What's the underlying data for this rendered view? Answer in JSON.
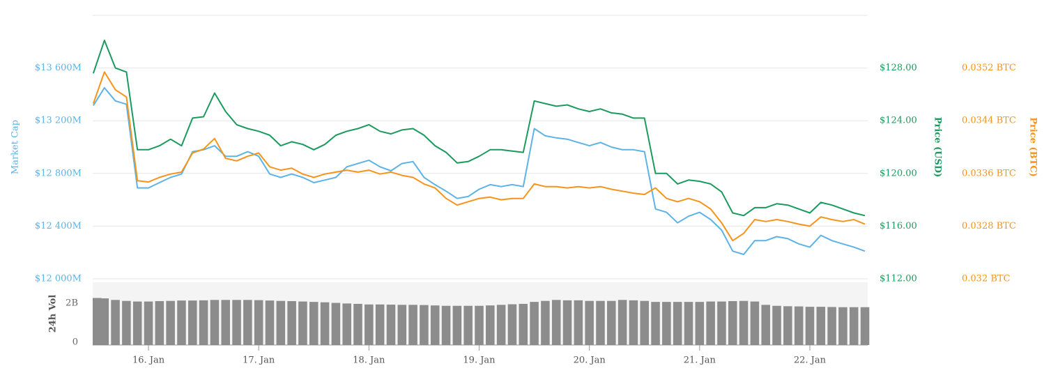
{
  "chart_data": [
    {
      "type": "line",
      "ylabel": "Market Cap",
      "y2label": "Price (USD)",
      "y3label": "Price (BTC)",
      "x": [
        15.5,
        15.6,
        15.7,
        15.8,
        15.9,
        16.0,
        16.1,
        16.2,
        16.3,
        16.4,
        16.5,
        16.6,
        16.7,
        16.8,
        16.9,
        17.0,
        17.1,
        17.2,
        17.3,
        17.4,
        17.5,
        17.6,
        17.7,
        17.8,
        17.9,
        18.0,
        18.1,
        18.2,
        18.3,
        18.4,
        18.5,
        18.6,
        18.7,
        18.8,
        18.9,
        19.0,
        19.1,
        19.2,
        19.3,
        19.4,
        19.5,
        19.6,
        19.7,
        19.8,
        19.9,
        20.0,
        20.1,
        20.2,
        20.3,
        20.4,
        20.5,
        20.6,
        20.7,
        20.8,
        20.9,
        21.0,
        21.1,
        21.2,
        21.3,
        21.4,
        21.5,
        21.6,
        21.7,
        21.8,
        21.9,
        22.0,
        22.1,
        22.2,
        22.3,
        22.4,
        22.5
      ],
      "xlim": [
        15.494,
        22.525
      ],
      "xticks": [
        {
          "value": 16,
          "label": "16. Jan"
        },
        {
          "value": 17,
          "label": "17. Jan"
        },
        {
          "value": 18,
          "label": "18. Jan"
        },
        {
          "value": 19,
          "label": "19. Jan"
        },
        {
          "value": 20,
          "label": "20. Jan"
        },
        {
          "value": 21,
          "label": "21. Jan"
        },
        {
          "value": 22,
          "label": "22. Jan"
        }
      ],
      "ylim": [
        12000,
        14000
      ],
      "yticks": [
        {
          "value": 12000,
          "label": "$12 000M"
        },
        {
          "value": 12400,
          "label": "$12 400M"
        },
        {
          "value": 12800,
          "label": "$12 800M"
        },
        {
          "value": 13200,
          "label": "$13 200M"
        },
        {
          "value": 13600,
          "label": "$13 600M"
        }
      ],
      "y2lim": [
        112,
        132
      ],
      "y2ticks": [
        {
          "value": 112,
          "label": "$112.00"
        },
        {
          "value": 116,
          "label": "$116.00"
        },
        {
          "value": 120,
          "label": "$120.00"
        },
        {
          "value": 124,
          "label": "$124.00"
        },
        {
          "value": 128,
          "label": "$128.00"
        }
      ],
      "y3lim": [
        0.032,
        0.036
      ],
      "y3ticks": [
        {
          "value": 0.032,
          "label": "0.032 BTC"
        },
        {
          "value": 0.0328,
          "label": "0.0328 BTC"
        },
        {
          "value": 0.0336,
          "label": "0.0336 BTC"
        },
        {
          "value": 0.0344,
          "label": "0.0344 BTC"
        },
        {
          "value": 0.0352,
          "label": "0.0352 BTC"
        }
      ],
      "grid": true,
      "series": [
        {
          "name": "Market Cap",
          "axis": "y",
          "color": "#5bb3e6",
          "values": [
            13315,
            13450,
            13350,
            13325,
            12690,
            12690,
            12730,
            12770,
            12795,
            12965,
            12980,
            13010,
            12930,
            12930,
            12965,
            12930,
            12795,
            12770,
            12795,
            12770,
            12730,
            12750,
            12770,
            12850,
            12875,
            12900,
            12850,
            12820,
            12875,
            12890,
            12770,
            12715,
            12665,
            12610,
            12625,
            12680,
            12715,
            12700,
            12715,
            12700,
            13140,
            13085,
            13070,
            13060,
            13035,
            13010,
            13035,
            13000,
            12980,
            12980,
            12965,
            12530,
            12505,
            12425,
            12475,
            12505,
            12450,
            12370,
            12210,
            12185,
            12290,
            12290,
            12320,
            12305,
            12265,
            12240,
            12330,
            12290,
            12265,
            12240,
            12210
          ]
        },
        {
          "name": "Price (USD)",
          "axis": "y2",
          "color": "#1a9a5c",
          "values": [
            127.6,
            130.1,
            128.0,
            127.7,
            121.8,
            121.8,
            122.1,
            122.6,
            122.1,
            124.2,
            124.3,
            126.1,
            124.7,
            123.7,
            123.4,
            123.2,
            122.9,
            122.1,
            122.4,
            122.2,
            121.8,
            122.2,
            122.9,
            123.2,
            123.4,
            123.7,
            123.2,
            123.0,
            123.3,
            123.4,
            122.9,
            122.1,
            121.6,
            120.8,
            120.9,
            121.3,
            121.8,
            121.8,
            121.7,
            121.6,
            125.5,
            125.3,
            125.1,
            125.2,
            124.9,
            124.7,
            124.9,
            124.6,
            124.5,
            124.2,
            124.2,
            120.0,
            120.0,
            119.2,
            119.5,
            119.4,
            119.2,
            118.6,
            117.0,
            116.8,
            117.4,
            117.4,
            117.7,
            117.6,
            117.3,
            117.0,
            117.8,
            117.6,
            117.3,
            117.0,
            116.8
          ]
        },
        {
          "name": "Price (BTC)",
          "axis": "y3",
          "color": "#f7931a",
          "values": [
            0.03466,
            0.03514,
            0.03487,
            0.03476,
            0.03349,
            0.03347,
            0.03354,
            0.03359,
            0.03362,
            0.03391,
            0.03397,
            0.03413,
            0.03383,
            0.03379,
            0.03386,
            0.03391,
            0.0337,
            0.03365,
            0.03368,
            0.03359,
            0.03354,
            0.03359,
            0.03362,
            0.03365,
            0.03362,
            0.03365,
            0.03359,
            0.03362,
            0.03357,
            0.03354,
            0.03344,
            0.03338,
            0.03322,
            0.03312,
            0.03317,
            0.03322,
            0.03324,
            0.0332,
            0.03322,
            0.03322,
            0.03344,
            0.0334,
            0.0334,
            0.03338,
            0.0334,
            0.03338,
            0.0334,
            0.03336,
            0.03333,
            0.0333,
            0.03328,
            0.03338,
            0.03322,
            0.03317,
            0.03322,
            0.03317,
            0.03306,
            0.03285,
            0.03258,
            0.03269,
            0.0329,
            0.03287,
            0.0329,
            0.03287,
            0.03283,
            0.0328,
            0.03294,
            0.0329,
            0.03287,
            0.0329,
            0.03283
          ]
        }
      ]
    },
    {
      "type": "bar",
      "ylabel": "24h Vol",
      "x": [
        15.5,
        15.6,
        15.7,
        15.8,
        15.9,
        16.0,
        16.1,
        16.2,
        16.3,
        16.4,
        16.5,
        16.6,
        16.7,
        16.8,
        16.9,
        17.0,
        17.1,
        17.2,
        17.3,
        17.4,
        17.5,
        17.6,
        17.7,
        17.8,
        17.9,
        18.0,
        18.1,
        18.2,
        18.3,
        18.4,
        18.5,
        18.6,
        18.7,
        18.8,
        18.9,
        19.0,
        19.1,
        19.2,
        19.3,
        19.4,
        19.5,
        19.6,
        19.7,
        19.8,
        19.9,
        20.0,
        20.1,
        20.2,
        20.3,
        20.4,
        20.5,
        20.6,
        20.7,
        20.8,
        20.9,
        21.0,
        21.1,
        21.2,
        21.3,
        21.4,
        21.5,
        21.6,
        21.7,
        21.8,
        21.9,
        22.0,
        22.1,
        22.2,
        22.3,
        22.4,
        22.5
      ],
      "xlim": [
        15.494,
        22.525
      ],
      "ylim": [
        0,
        3.2
      ],
      "yticks": [
        0,
        {
          "value": 2,
          "label": "2B"
        }
      ],
      "color": "#8c8c8c",
      "values": [
        2.4,
        2.38,
        2.3,
        2.25,
        2.22,
        2.22,
        2.24,
        2.25,
        2.27,
        2.27,
        2.28,
        2.3,
        2.3,
        2.3,
        2.3,
        2.29,
        2.27,
        2.25,
        2.24,
        2.22,
        2.2,
        2.18,
        2.15,
        2.12,
        2.1,
        2.07,
        2.07,
        2.06,
        2.05,
        2.05,
        2.04,
        2.02,
        2.0,
        2.0,
        2.0,
        2.0,
        2.02,
        2.05,
        2.08,
        2.1,
        2.2,
        2.25,
        2.3,
        2.28,
        2.28,
        2.25,
        2.25,
        2.25,
        2.3,
        2.28,
        2.25,
        2.2,
        2.2,
        2.2,
        2.2,
        2.2,
        2.22,
        2.22,
        2.24,
        2.25,
        2.22,
        2.05,
        2.0,
        1.98,
        1.97,
        1.95,
        1.95,
        1.94,
        1.93,
        1.93,
        1.93
      ]
    }
  ]
}
